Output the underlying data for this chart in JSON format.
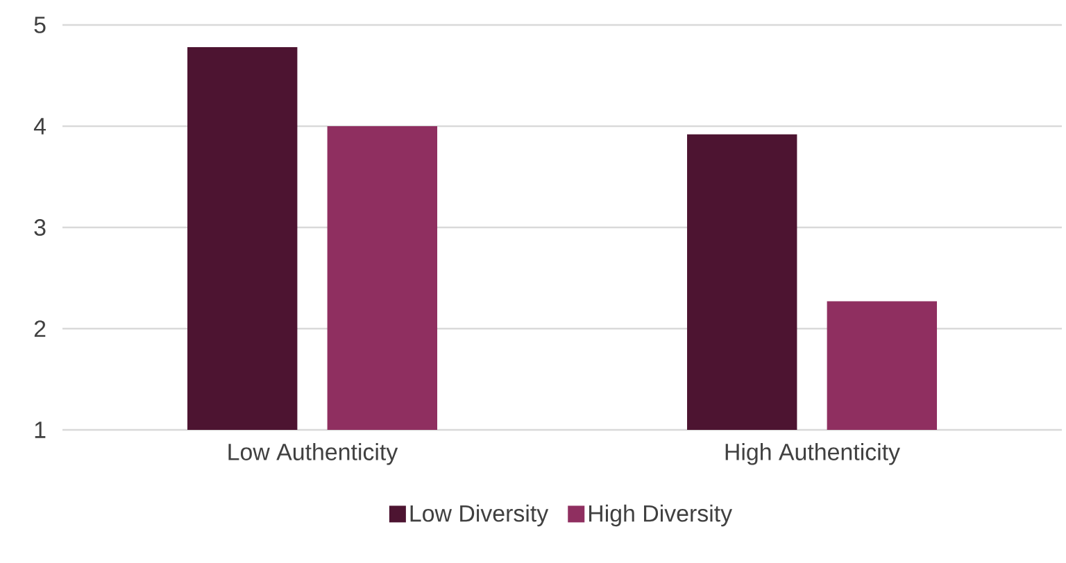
{
  "chart_data": {
    "type": "bar",
    "categories": [
      "Low Authenticity",
      "High Authenticity"
    ],
    "series": [
      {
        "name": "Low Diversity",
        "color": "#4d1431",
        "values": [
          4.78,
          3.92
        ]
      },
      {
        "name": "High Diversity",
        "color": "#8f2f60",
        "values": [
          4.0,
          2.27
        ]
      }
    ],
    "ylim": [
      1,
      5
    ],
    "yticks": [
      1,
      2,
      3,
      4,
      5
    ],
    "grid": "y",
    "legend": "bottom"
  }
}
